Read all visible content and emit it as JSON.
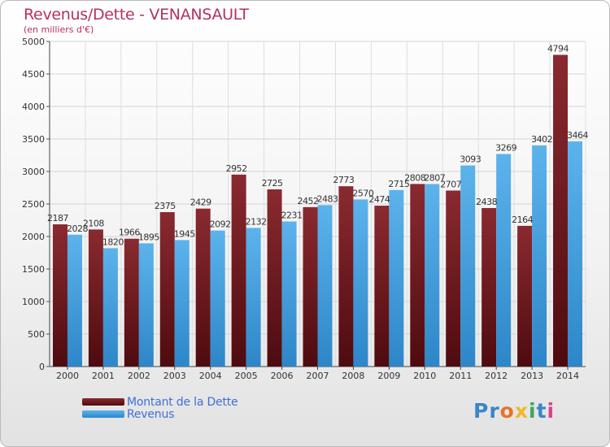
{
  "chart_data": {
    "type": "bar",
    "title": "Revenus/Dette - VENANSAULT",
    "subtitle": "(en milliers d'€)",
    "xlabel": "",
    "ylabel": "",
    "ylim": [
      0,
      5000
    ],
    "yticks": [
      0,
      500,
      1000,
      1500,
      2000,
      2500,
      3000,
      3500,
      4000,
      4500,
      5000
    ],
    "grid": true,
    "categories": [
      "2000",
      "2001",
      "2002",
      "2003",
      "2004",
      "2005",
      "2006",
      "2007",
      "2008",
      "2009",
      "2010",
      "2011",
      "2012",
      "2013",
      "2014"
    ],
    "series": [
      {
        "name": "Montant de la Dette",
        "color": "#7a1e25",
        "values": [
          2187,
          2108,
          1966,
          2375,
          2429,
          2952,
          2725,
          2452,
          2773,
          2474,
          2808,
          2707,
          2438,
          2164,
          4794
        ],
        "labels": [
          "2187",
          "2108",
          "1966",
          "2375",
          "2429",
          "2952",
          "2725",
          "2452",
          "2773",
          "2474",
          "2808",
          "2707",
          "2438",
          "2164",
          "4794"
        ]
      },
      {
        "name": "Revenus",
        "color": "#3f9ee0",
        "values": [
          2028,
          1820,
          1895,
          1945,
          2092,
          2132,
          2231,
          2483,
          2570,
          2715,
          2807,
          3093,
          3269,
          3402,
          3464
        ],
        "labels": [
          "2028",
          "1820",
          "1895",
          "1945",
          "2092",
          "2132",
          "2231",
          "2483",
          "2570",
          "2715",
          "2807",
          "3093",
          "3269",
          "3402",
          "3464"
        ]
      }
    ],
    "legend": {
      "position": "bottom-left"
    }
  },
  "logo": {
    "text": "Proxiti",
    "letters": [
      {
        "char": "P",
        "color": "#3a86c8"
      },
      {
        "char": "r",
        "color": "#3a86c8"
      },
      {
        "char": "o",
        "color": "#e8732a"
      },
      {
        "char": "x",
        "color": "#f0b828"
      },
      {
        "char": "i",
        "color": "#3aa85c"
      },
      {
        "char": "t",
        "color": "#3a86c8"
      },
      {
        "char": "i",
        "color": "#d9428a"
      }
    ]
  }
}
